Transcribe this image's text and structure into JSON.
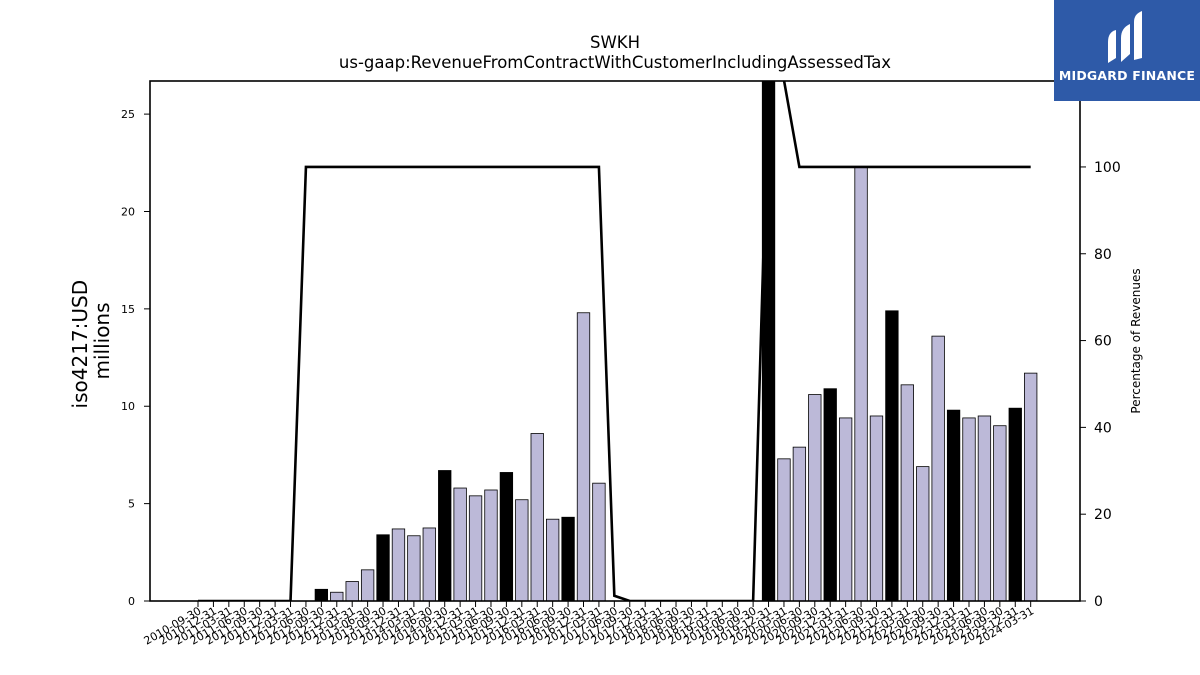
{
  "chart_data": {
    "type": "bar",
    "title": "SWKH",
    "subtitle": "us-gaap:RevenueFromContractWithCustomerIncludingAssessedTax",
    "ylabel": "iso4217:USD\nmillions",
    "y2label": "Percentage of Revenues",
    "ylim": [
      0,
      26.7
    ],
    "y2lim": [
      0,
      119.8
    ],
    "yticks": [
      0,
      5,
      10,
      15,
      20,
      25
    ],
    "y2ticks": [
      0,
      20,
      40,
      60,
      80,
      100
    ],
    "categories": [
      "2010-09-30",
      "2010-12-31",
      "2011-03-31",
      "2011-06-30",
      "2011-09-30",
      "2011-12-31",
      "2012-03-31",
      "2012-06-30",
      "2012-09-30",
      "2012-12-31",
      "2013-03-31",
      "2013-06-30",
      "2013-09-30",
      "2013-12-31",
      "2014-03-31",
      "2014-06-30",
      "2014-09-30",
      "2014-12-31",
      "2015-03-31",
      "2015-06-30",
      "2015-09-30",
      "2015-12-31",
      "2016-03-31",
      "2016-06-30",
      "2016-09-30",
      "2016-12-31",
      "2017-03-31",
      "2017-06-30",
      "2017-09-30",
      "2017-12-31",
      "2018-03-31",
      "2018-06-30",
      "2018-09-30",
      "2018-12-31",
      "2019-03-31",
      "2019-06-30",
      "2019-09-30",
      "2019-12-31",
      "2020-03-31",
      "2020-06-30",
      "2020-09-30",
      "2020-12-31",
      "2021-03-31",
      "2021-06-30",
      "2021-09-30",
      "2021-12-31",
      "2022-03-31",
      "2022-06-30",
      "2022-09-30",
      "2022-12-31",
      "2023-03-31",
      "2023-06-30",
      "2023-09-30",
      "2023-12-31",
      "2024-03-31"
    ],
    "series": [
      {
        "values": [
          null,
          null,
          null,
          null,
          null,
          null,
          null,
          null,
          0.6,
          0.45,
          1.0,
          1.6,
          3.4,
          3.7,
          3.35,
          3.75,
          6.7,
          5.8,
          5.4,
          5.7,
          6.6,
          5.2,
          8.6,
          4.2,
          4.3,
          14.8,
          6.05,
          null,
          null,
          null,
          null,
          null,
          null,
          null,
          null,
          null,
          null,
          26.7,
          7.3,
          7.9,
          10.6,
          10.9,
          9.4,
          22.3,
          9.5,
          14.9,
          11.1,
          6.9,
          13.6,
          9.8,
          9.4,
          9.5,
          9.0,
          9.9,
          11.7
        ],
        "annual": [
          false,
          false,
          false,
          false,
          false,
          false,
          false,
          false,
          true,
          false,
          false,
          false,
          true,
          false,
          false,
          false,
          true,
          false,
          false,
          false,
          true,
          false,
          false,
          false,
          true,
          false,
          false,
          false,
          false,
          false,
          false,
          false,
          false,
          false,
          false,
          false,
          false,
          true,
          false,
          false,
          false,
          true,
          false,
          false,
          false,
          true,
          false,
          false,
          false,
          true,
          false,
          false,
          false,
          true,
          false
        ]
      },
      {
        "values": [
          0,
          0,
          0,
          0,
          0,
          0,
          0,
          100,
          100,
          100,
          100,
          100,
          100,
          100,
          100,
          100,
          100,
          100,
          100,
          100,
          100,
          100,
          100,
          100,
          100,
          100,
          100,
          1.2,
          0,
          0,
          0,
          0,
          0,
          0,
          0,
          0,
          0,
          120,
          120,
          100,
          100,
          100,
          100,
          100,
          100,
          100,
          100,
          100,
          100,
          100,
          100,
          100,
          100,
          100,
          100
        ]
      }
    ],
    "colors": {
      "quarter_bar": "#bcb9d8",
      "annual_bar": "#000000",
      "line": "#000000",
      "logo_bg": "#2e5aa8"
    }
  },
  "logo": {
    "text": "MIDGARD FINANCE",
    "icon": "midgard-logo-icon"
  }
}
